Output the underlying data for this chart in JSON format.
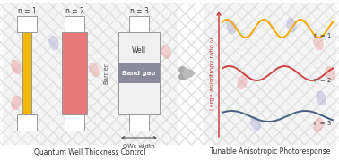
{
  "title_left": "Quantum Well Thickness Control",
  "title_right": "Tunable Anisotropic Photoresponse",
  "n_labels": [
    "n = 1",
    "n = 2",
    "n = 3"
  ],
  "well_colors": [
    "#F5B800",
    "#E87878",
    "#F0F0F0"
  ],
  "barrier_color": "#888888",
  "band_gap_color": "#8A8A9A",
  "well_label": "Well",
  "band_gap_label": "Band gap",
  "qws_width_label": "QWs width",
  "barrier_label": "Barrier",
  "y_axis_label": "Large anisotropy ratio ω",
  "wave_colors": [
    "#F5A800",
    "#CC4444",
    "#4A6080"
  ],
  "wave_n_labels": [
    "n = 1",
    "n = 2",
    "n = 3"
  ],
  "bg_color": "#FFFFFF",
  "trellis_color": "#DDDDDD",
  "oval_red": "#E88888",
  "oval_blue": "#9999CC",
  "arrow_color": "#999999",
  "text_color": "#333333",
  "axis_color": "#CC3333",
  "border_color": "#999999"
}
